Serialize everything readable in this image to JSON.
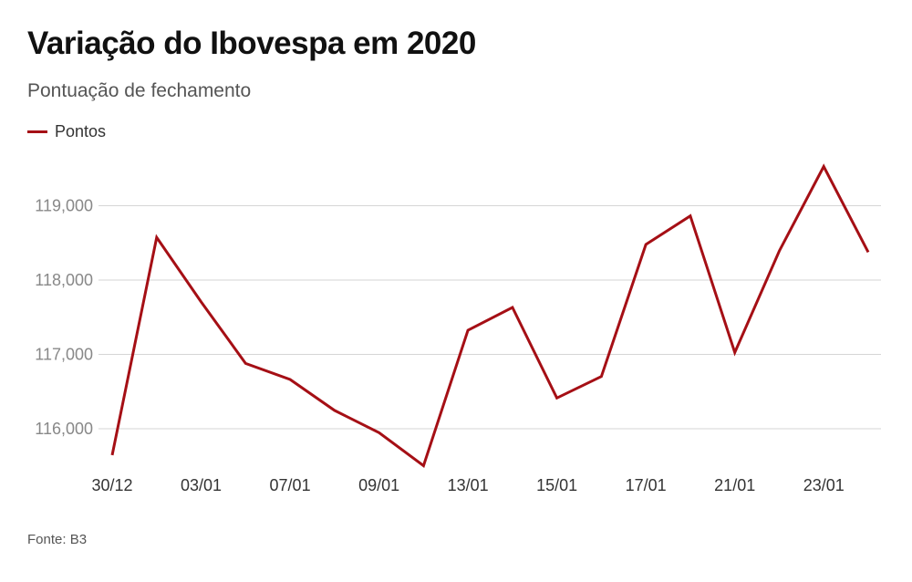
{
  "chart_data": {
    "type": "line",
    "title": "Variação do Ibovespa em 2020",
    "subtitle": "Pontuação de fechamento",
    "source": "Fonte: B3",
    "x": [
      "30/12",
      "02/01",
      "03/01",
      "06/01",
      "07/01",
      "08/01",
      "09/01",
      "10/01",
      "13/01",
      "14/01",
      "15/01",
      "16/01",
      "17/01",
      "20/01",
      "21/01",
      "22/01",
      "23/01",
      "24/01"
    ],
    "x_tick_labels": [
      "30/12",
      "03/01",
      "07/01",
      "09/01",
      "13/01",
      "15/01",
      "17/01",
      "21/01",
      "23/01"
    ],
    "series": [
      {
        "name": "Pontos",
        "color": "#a50f15",
        "values": [
          115645,
          118573,
          117707,
          116878,
          116662,
          116247,
          115947,
          115503,
          117325,
          117632,
          116414,
          116703,
          118478,
          118862,
          117026,
          118391,
          119528,
          118376
        ]
      }
    ],
    "yticks": [
      116000,
      117000,
      118000,
      119000
    ],
    "y_tick_labels": [
      "116,000",
      "117,000",
      "118,000",
      "119,000"
    ],
    "ylim": [
      115400,
      119600
    ],
    "grid": true,
    "legend": "top-left"
  }
}
